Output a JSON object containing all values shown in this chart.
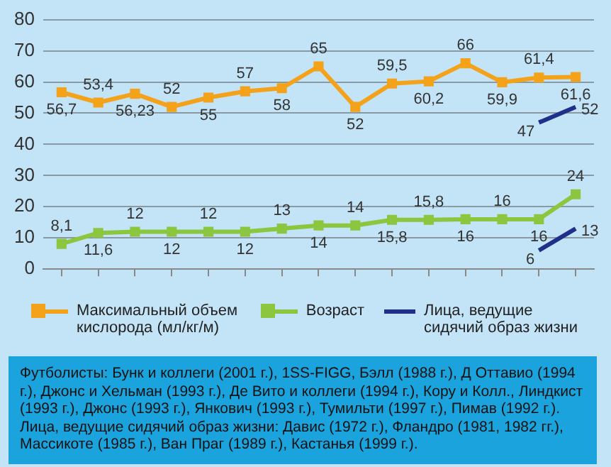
{
  "chart_data": {
    "type": "line",
    "categories": [
      null,
      null,
      null,
      null,
      null,
      null,
      null,
      null,
      null,
      null,
      null,
      null,
      null,
      null,
      null
    ],
    "series": [
      {
        "name": "Максимальный объем кислорода (мл/кг/м)",
        "color": "#f5a21b",
        "marker": "square",
        "values": [
          56.7,
          53.4,
          56.23,
          52,
          55,
          57,
          58,
          65,
          52,
          59.5,
          60.2,
          66,
          59.9,
          61.4,
          61.6
        ],
        "value_labels": [
          "56,7",
          "53,4",
          "56,23",
          "52",
          "55",
          "57",
          "58",
          "65",
          "52",
          "59,5",
          "60,2",
          "66",
          "59,9",
          "61,4",
          "61,6"
        ]
      },
      {
        "name": "Возраст",
        "color": "#8cc63e",
        "marker": "square",
        "values": [
          8.1,
          11.6,
          12,
          12,
          12,
          12,
          13,
          14,
          14,
          15.8,
          15.8,
          16,
          16,
          16,
          24
        ],
        "value_labels": [
          "8,1",
          "11,6",
          "12",
          "12",
          "12",
          "12",
          "13",
          "14",
          "14",
          "15,8",
          "15,8",
          "16",
          "16",
          "16",
          "24"
        ]
      },
      {
        "name": "Лица, ведущие сидячий образ жизни",
        "color": "#1f2f8a",
        "marker": "none",
        "values": [
          null,
          null,
          null,
          null,
          null,
          null,
          null,
          null,
          null,
          null,
          null,
          null,
          null,
          47,
          52
        ],
        "value_labels": [
          null,
          null,
          null,
          null,
          null,
          null,
          null,
          null,
          null,
          null,
          null,
          null,
          null,
          "47",
          "52"
        ]
      },
      {
        "color": "#1f2f8a",
        "marker": "none",
        "values": [
          null,
          null,
          null,
          null,
          null,
          null,
          null,
          null,
          null,
          null,
          null,
          null,
          null,
          6,
          13
        ],
        "value_labels": [
          null,
          null,
          null,
          null,
          null,
          null,
          null,
          null,
          null,
          null,
          null,
          null,
          null,
          "6",
          "13"
        ]
      }
    ],
    "ylim": [
      0,
      80
    ],
    "yticks": [
      0,
      10,
      20,
      30,
      40,
      50,
      60,
      70,
      80
    ],
    "grid": "y",
    "legend": "bottom",
    "annotations": [
      "Футболисты: Бунк и коллеги (2001 г.), 1SS-FIGG, Бэлл (1988 г.), Д Оттавио (1994 г.), Джонс и Хельман (1993 г.), Де Вито и коллеги (1994 г.), Кору и Колл., Линдкист (1993 г.), Джонс (1993 г.), Янкович (1993 г.), Тумильти (1997 г.), Пимав (1992 г.).",
      "Лица, ведущие сидячий образ жизни: Давис (1972 г.), Фландро (1981, 1982 гг.), Массикоте (1985 г.), Ван Праг (1989 г.), Кастанья (1999 г.)."
    ]
  }
}
